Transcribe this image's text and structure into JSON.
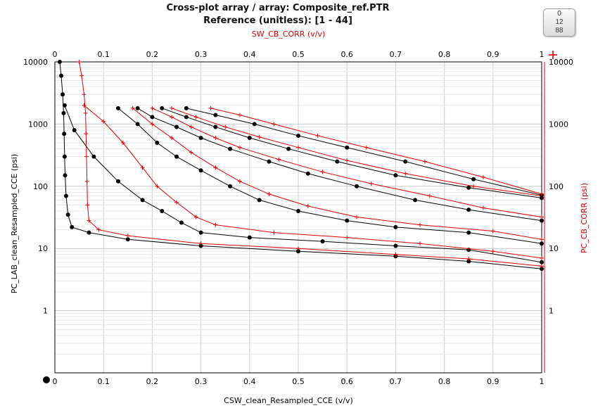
{
  "header": {
    "title": "Cross-plot array / array: Composite_ref.PTR",
    "subtitle": "Reference (unitless): [1 - 44]"
  },
  "badge": {
    "values": [
      "0",
      "12",
      "88"
    ]
  },
  "colors": {
    "black_series": "#000000",
    "red_series": "#e00000",
    "grid": "#d0d0d0"
  },
  "icons": {
    "add": "plus-icon"
  },
  "chart_data": {
    "type": "scatter",
    "title": "Cross-plot array / array: Composite_ref.PTR",
    "subtitle": "Reference (unitless): [1 - 44]",
    "xlabel": "CSW_clean_Resampled_CCE (v/v)",
    "x2label": "SW_CB_CORR (v/v)",
    "ylabel": "PC_LAB_clean_Resampled_CCE (psi)",
    "y2label": "PC_CB_CORR (psi)",
    "xlim": [
      0,
      1
    ],
    "ylim": [
      0.1,
      10000
    ],
    "yscale": "log",
    "grid": true,
    "xticks": [
      "0",
      "0.1",
      "0.2",
      "0.3",
      "0.4",
      "0.5",
      "0.6",
      "0.7",
      "0.8",
      "0.9",
      "1"
    ],
    "yticks": [
      "10000",
      "1000",
      "100",
      "10",
      "1"
    ],
    "series": [
      {
        "color": "#000000",
        "marker": "dot",
        "points": [
          [
            0.01,
            10000
          ],
          [
            0.013,
            6000
          ],
          [
            0.016,
            3000
          ],
          [
            0.018,
            1500
          ],
          [
            0.019,
            700
          ],
          [
            0.02,
            300
          ],
          [
            0.021,
            150
          ],
          [
            0.023,
            70
          ],
          [
            0.027,
            35
          ],
          [
            0.035,
            22
          ],
          [
            0.07,
            18
          ],
          [
            0.15,
            14
          ],
          [
            0.3,
            11
          ],
          [
            0.5,
            9
          ],
          [
            0.7,
            7.5
          ],
          [
            0.85,
            6.2
          ],
          [
            1.0,
            4.7
          ]
        ]
      },
      {
        "color": "#e00000",
        "marker": "plus",
        "points": [
          [
            0.05,
            10000
          ],
          [
            0.055,
            6000
          ],
          [
            0.06,
            3000
          ],
          [
            0.063,
            1500
          ],
          [
            0.064,
            700
          ],
          [
            0.065,
            300
          ],
          [
            0.066,
            120
          ],
          [
            0.067,
            50
          ],
          [
            0.07,
            28
          ],
          [
            0.09,
            20
          ],
          [
            0.15,
            16
          ],
          [
            0.3,
            12
          ],
          [
            0.5,
            10
          ],
          [
            0.7,
            8
          ],
          [
            0.85,
            6.8
          ],
          [
            1.0,
            5.2
          ]
        ]
      },
      {
        "color": "#000000",
        "marker": "dot",
        "points": [
          [
            0.02,
            2000
          ],
          [
            0.04,
            800
          ],
          [
            0.08,
            300
          ],
          [
            0.13,
            120
          ],
          [
            0.18,
            60
          ],
          [
            0.22,
            40
          ],
          [
            0.26,
            26
          ],
          [
            0.3,
            18
          ],
          [
            0.4,
            15
          ],
          [
            0.55,
            13
          ],
          [
            0.7,
            11
          ],
          [
            0.85,
            9.5
          ],
          [
            1.0,
            6
          ]
        ]
      },
      {
        "color": "#e00000",
        "marker": "plus",
        "points": [
          [
            0.06,
            2000
          ],
          [
            0.1,
            1100
          ],
          [
            0.14,
            500
          ],
          [
            0.18,
            200
          ],
          [
            0.21,
            100
          ],
          [
            0.25,
            55
          ],
          [
            0.29,
            32
          ],
          [
            0.33,
            24
          ],
          [
            0.45,
            18
          ],
          [
            0.6,
            15
          ],
          [
            0.75,
            12
          ],
          [
            0.9,
            9
          ],
          [
            1.0,
            7
          ]
        ]
      },
      {
        "color": "#000000",
        "marker": "dot",
        "points": [
          [
            0.13,
            1800
          ],
          [
            0.17,
            1000
          ],
          [
            0.21,
            500
          ],
          [
            0.25,
            300
          ],
          [
            0.3,
            180
          ],
          [
            0.36,
            100
          ],
          [
            0.42,
            60
          ],
          [
            0.5,
            40
          ],
          [
            0.6,
            28
          ],
          [
            0.7,
            22
          ],
          [
            0.85,
            18
          ],
          [
            1.0,
            12
          ]
        ]
      },
      {
        "color": "#e00000",
        "marker": "plus",
        "points": [
          [
            0.16,
            1800
          ],
          [
            0.2,
            1000
          ],
          [
            0.24,
            600
          ],
          [
            0.28,
            350
          ],
          [
            0.33,
            200
          ],
          [
            0.38,
            120
          ],
          [
            0.44,
            75
          ],
          [
            0.52,
            48
          ],
          [
            0.62,
            32
          ],
          [
            0.75,
            24
          ],
          [
            0.9,
            19
          ],
          [
            1.0,
            14
          ]
        ]
      },
      {
        "color": "#000000",
        "marker": "dot",
        "points": [
          [
            0.17,
            1800
          ],
          [
            0.2,
            1300
          ],
          [
            0.25,
            900
          ],
          [
            0.3,
            600
          ],
          [
            0.36,
            400
          ],
          [
            0.44,
            250
          ],
          [
            0.52,
            160
          ],
          [
            0.62,
            100
          ],
          [
            0.74,
            60
          ],
          [
            0.85,
            42
          ],
          [
            1.0,
            28
          ]
        ]
      },
      {
        "color": "#e00000",
        "marker": "plus",
        "points": [
          [
            0.2,
            1800
          ],
          [
            0.24,
            1300
          ],
          [
            0.28,
            900
          ],
          [
            0.33,
            600
          ],
          [
            0.38,
            420
          ],
          [
            0.46,
            270
          ],
          [
            0.55,
            170
          ],
          [
            0.65,
            110
          ],
          [
            0.77,
            70
          ],
          [
            0.88,
            45
          ],
          [
            1.0,
            32
          ]
        ]
      },
      {
        "color": "#000000",
        "marker": "dot",
        "points": [
          [
            0.22,
            1800
          ],
          [
            0.27,
            1300
          ],
          [
            0.33,
            900
          ],
          [
            0.4,
            600
          ],
          [
            0.48,
            400
          ],
          [
            0.58,
            250
          ],
          [
            0.7,
            150
          ],
          [
            0.85,
            95
          ],
          [
            1.0,
            65
          ]
        ]
      },
      {
        "color": "#e00000",
        "marker": "plus",
        "points": [
          [
            0.24,
            1800
          ],
          [
            0.29,
            1300
          ],
          [
            0.35,
            900
          ],
          [
            0.42,
            620
          ],
          [
            0.5,
            420
          ],
          [
            0.6,
            260
          ],
          [
            0.72,
            160
          ],
          [
            0.86,
            100
          ],
          [
            1.0,
            70
          ]
        ]
      },
      {
        "color": "#000000",
        "marker": "dot",
        "points": [
          [
            0.27,
            1800
          ],
          [
            0.33,
            1400
          ],
          [
            0.41,
            1000
          ],
          [
            0.5,
            650
          ],
          [
            0.6,
            420
          ],
          [
            0.72,
            250
          ],
          [
            0.86,
            130
          ],
          [
            1.0,
            72
          ]
        ]
      },
      {
        "color": "#e00000",
        "marker": "plus",
        "points": [
          [
            0.32,
            1800
          ],
          [
            0.38,
            1400
          ],
          [
            0.45,
            1000
          ],
          [
            0.54,
            650
          ],
          [
            0.64,
            420
          ],
          [
            0.76,
            250
          ],
          [
            0.88,
            140
          ],
          [
            1.0,
            75
          ]
        ]
      }
    ]
  }
}
